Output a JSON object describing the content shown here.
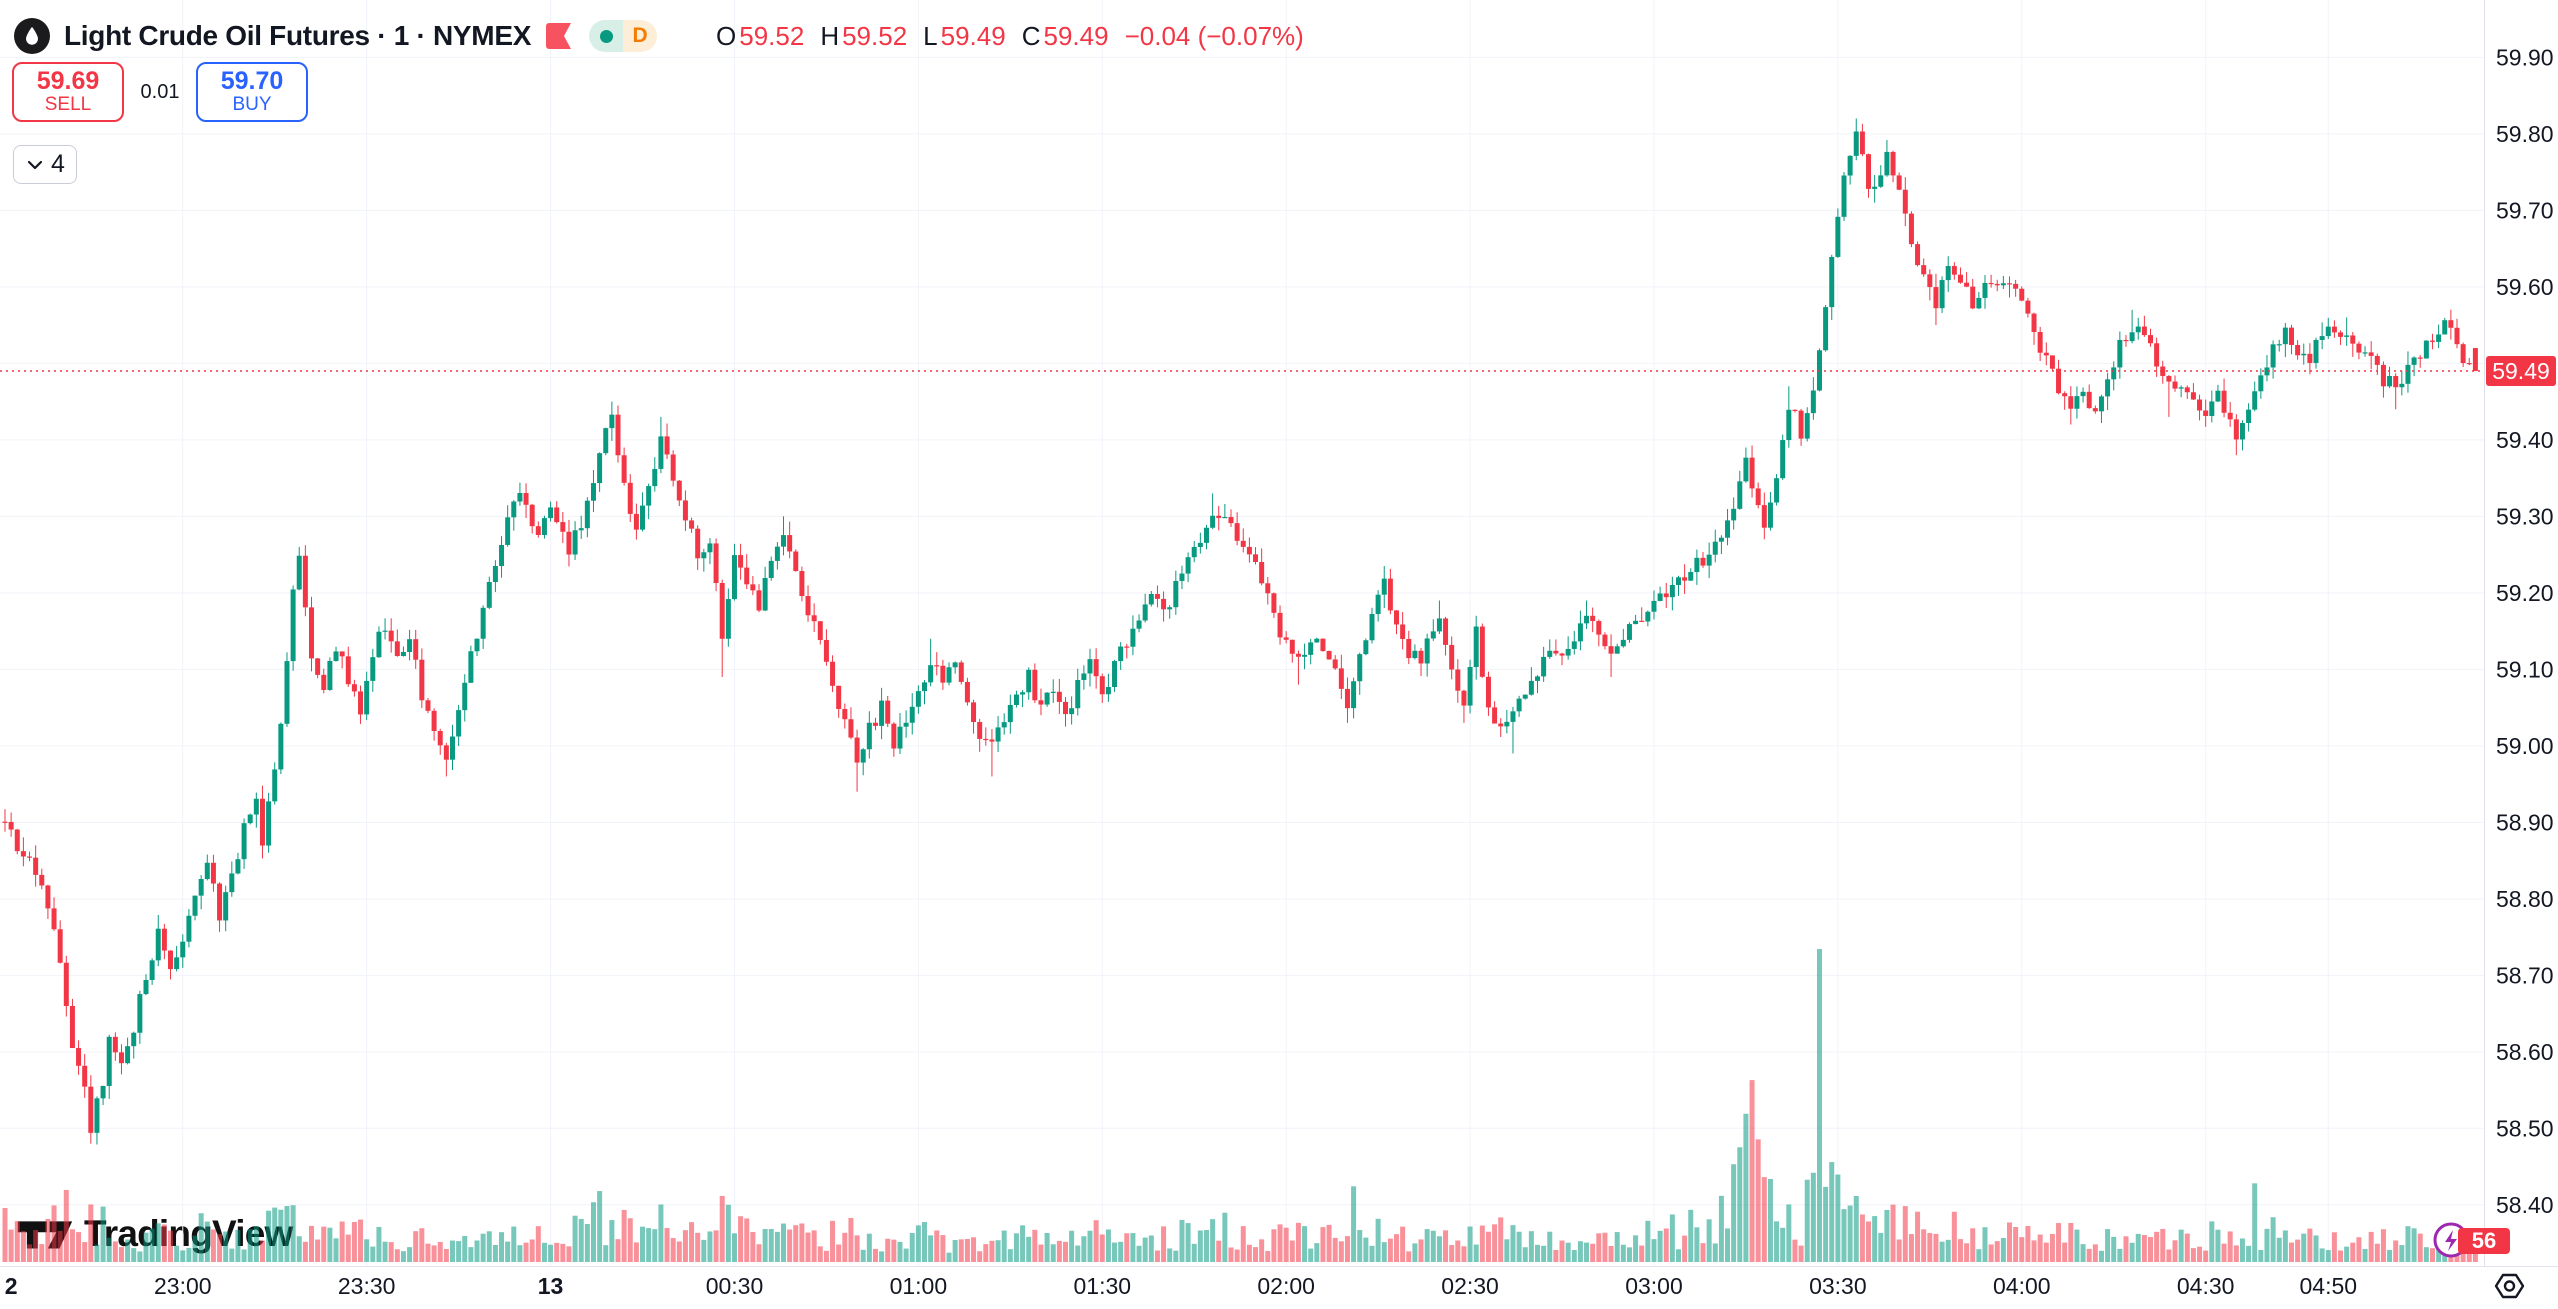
{
  "header": {
    "title": "Light Crude Oil Futures · 1 · NYMEX",
    "logo_icon": "oil-drop",
    "flag_color": "#f7525f",
    "interval_badge": "D",
    "ohlc": {
      "o_label": "O",
      "o": "59.52",
      "h_label": "H",
      "h": "59.52",
      "l_label": "L",
      "l": "59.49",
      "c_label": "C",
      "c": "59.49",
      "change": "−0.04 (−0.07%)"
    }
  },
  "order_panel": {
    "sell_price": "59.69",
    "sell_label": "SELL",
    "spread": "0.01",
    "buy_price": "59.70",
    "buy_label": "BUY"
  },
  "toolbar": {
    "object_tree_count": "4"
  },
  "watermark": {
    "text": "TradingView"
  },
  "last_price": {
    "value": "59.49"
  },
  "volume_badge": {
    "value": "56"
  },
  "colors": {
    "up": "#089981",
    "down": "#f23645",
    "vol_up": "rgba(8,153,129,0.55)",
    "vol_down": "rgba(242,54,69,0.55)",
    "grid": "#f0f3fa",
    "axis_border": "#e0e3eb",
    "axis_text": "#131722",
    "price_line": "#f23645",
    "buy_blue": "#2962ff",
    "alert_purple": "#9c27b0"
  },
  "chart_data": {
    "type": "candlestick",
    "symbol": "Light Crude Oil Futures",
    "interval": "1",
    "exchange": "NYMEX",
    "price_line": 59.49,
    "last_candle": {
      "o": 59.52,
      "h": 59.52,
      "l": 59.49,
      "c": 59.49
    },
    "y_axis": {
      "max": 59.975,
      "min": 58.32,
      "ticks": [
        {
          "p": 59.9
        },
        {
          "p": 59.8
        },
        {
          "p": 59.7
        },
        {
          "p": 59.6
        },
        {
          "p": 59.5,
          "hide_label": true
        },
        {
          "p": 59.4
        },
        {
          "p": 59.3
        },
        {
          "p": 59.2
        },
        {
          "p": 59.1
        },
        {
          "p": 59.0
        },
        {
          "p": 58.9
        },
        {
          "p": 58.8
        },
        {
          "p": 58.7
        },
        {
          "p": 58.6
        },
        {
          "p": 58.5
        },
        {
          "p": 58.4
        }
      ]
    },
    "x_axis": {
      "start_time": "22:31",
      "ticks": [
        {
          "m": 1,
          "label": "2",
          "bold": true,
          "grid": false
        },
        {
          "m": 29,
          "label": "23:00"
        },
        {
          "m": 59,
          "label": "23:30"
        },
        {
          "m": 89,
          "label": "13",
          "bold": true
        },
        {
          "m": 119,
          "label": "00:30"
        },
        {
          "m": 149,
          "label": "01:00"
        },
        {
          "m": 179,
          "label": "01:30"
        },
        {
          "m": 209,
          "label": "02:00"
        },
        {
          "m": 239,
          "label": "02:30"
        },
        {
          "m": 269,
          "label": "03:00"
        },
        {
          "m": 299,
          "label": "03:30"
        },
        {
          "m": 329,
          "label": "04:00"
        },
        {
          "m": 359,
          "label": "04:30"
        },
        {
          "m": 379,
          "label": "04:50"
        }
      ]
    },
    "anchors": [
      [
        0,
        58.9
      ],
      [
        2,
        58.87
      ],
      [
        5,
        58.84
      ],
      [
        7,
        58.78
      ],
      [
        9,
        58.72
      ],
      [
        11,
        58.61
      ],
      [
        13,
        58.55
      ],
      [
        14,
        58.5,
        null,
        58.48
      ],
      [
        16,
        58.56
      ],
      [
        17,
        58.63
      ],
      [
        19,
        58.58
      ],
      [
        21,
        58.63
      ],
      [
        23,
        58.7
      ],
      [
        25,
        58.76
      ],
      [
        27,
        58.71
      ],
      [
        29,
        58.74
      ],
      [
        31,
        58.81
      ],
      [
        33,
        58.84
      ],
      [
        35,
        58.78
      ],
      [
        37,
        58.83
      ],
      [
        39,
        58.89
      ],
      [
        41,
        58.93
      ],
      [
        42,
        58.88
      ],
      [
        44,
        58.97
      ],
      [
        46,
        59.1
      ],
      [
        47,
        59.2
      ],
      [
        48,
        59.24,
        59.26
      ],
      [
        50,
        59.12
      ],
      [
        52,
        59.08
      ],
      [
        54,
        59.13
      ],
      [
        56,
        59.09
      ],
      [
        58,
        59.04
      ],
      [
        60,
        59.12
      ],
      [
        62,
        59.16
      ],
      [
        64,
        59.11
      ],
      [
        66,
        59.14
      ],
      [
        68,
        59.07
      ],
      [
        70,
        59.03
      ],
      [
        72,
        58.99,
        null,
        58.96
      ],
      [
        74,
        59.05
      ],
      [
        76,
        59.12
      ],
      [
        78,
        59.18
      ],
      [
        80,
        59.24
      ],
      [
        82,
        59.3
      ],
      [
        84,
        59.33
      ],
      [
        87,
        59.28
      ],
      [
        89,
        59.31
      ],
      [
        92,
        59.26
      ],
      [
        95,
        59.31
      ],
      [
        97,
        59.38
      ],
      [
        99,
        59.43,
        59.45
      ],
      [
        101,
        59.34
      ],
      [
        103,
        59.28
      ],
      [
        105,
        59.33
      ],
      [
        107,
        59.41,
        59.43
      ],
      [
        109,
        59.35
      ],
      [
        111,
        59.3
      ],
      [
        113,
        59.25
      ],
      [
        115,
        59.27
      ],
      [
        116,
        59.21
      ],
      [
        117,
        59.13,
        null,
        59.09
      ],
      [
        118,
        59.2
      ],
      [
        119,
        59.26
      ],
      [
        121,
        59.22
      ],
      [
        123,
        59.18
      ],
      [
        125,
        59.24
      ],
      [
        127,
        59.27,
        59.3
      ],
      [
        129,
        59.22
      ],
      [
        131,
        59.18
      ],
      [
        133,
        59.13
      ],
      [
        135,
        59.07
      ],
      [
        137,
        59.03
      ],
      [
        139,
        58.98,
        null,
        58.94
      ],
      [
        141,
        59.02
      ],
      [
        143,
        59.05
      ],
      [
        145,
        59.0
      ],
      [
        147,
        59.04
      ],
      [
        149,
        59.07
      ],
      [
        151,
        59.11,
        59.14
      ],
      [
        153,
        59.08
      ],
      [
        155,
        59.11
      ],
      [
        157,
        59.06
      ],
      [
        159,
        59.02
      ],
      [
        161,
        59.0,
        null,
        58.96
      ],
      [
        163,
        59.03
      ],
      [
        165,
        59.06
      ],
      [
        167,
        59.09
      ],
      [
        169,
        59.05
      ],
      [
        171,
        59.08
      ],
      [
        173,
        59.04
      ],
      [
        175,
        59.08
      ],
      [
        177,
        59.11
      ],
      [
        179,
        59.06
      ],
      [
        181,
        59.1
      ],
      [
        183,
        59.14
      ],
      [
        185,
        59.17
      ],
      [
        187,
        59.2
      ],
      [
        189,
        59.17
      ],
      [
        191,
        59.21
      ],
      [
        193,
        59.24
      ],
      [
        195,
        59.27
      ],
      [
        197,
        59.31,
        59.33
      ],
      [
        199,
        59.3
      ],
      [
        201,
        59.27
      ],
      [
        203,
        59.25
      ],
      [
        205,
        59.22
      ],
      [
        207,
        59.17
      ],
      [
        209,
        59.13
      ],
      [
        211,
        59.11,
        null,
        59.08
      ],
      [
        213,
        59.14
      ],
      [
        215,
        59.12
      ],
      [
        217,
        59.1
      ],
      [
        219,
        59.05,
        null,
        59.03
      ],
      [
        221,
        59.12
      ],
      [
        223,
        59.17
      ],
      [
        225,
        59.21,
        59.23
      ],
      [
        227,
        59.16
      ],
      [
        229,
        59.12
      ],
      [
        231,
        59.11
      ],
      [
        233,
        59.15
      ],
      [
        234,
        59.17,
        59.19
      ],
      [
        236,
        59.1
      ],
      [
        238,
        59.06,
        null,
        59.03
      ],
      [
        240,
        59.15,
        59.17
      ],
      [
        242,
        59.05
      ],
      [
        244,
        59.03
      ],
      [
        246,
        59.04,
        null,
        58.99
      ],
      [
        248,
        59.07
      ],
      [
        250,
        59.1
      ],
      [
        252,
        59.12
      ],
      [
        254,
        59.11
      ],
      [
        256,
        59.13
      ],
      [
        258,
        59.17,
        59.19
      ],
      [
        260,
        59.15
      ],
      [
        262,
        59.12,
        null,
        59.09
      ],
      [
        264,
        59.14
      ],
      [
        266,
        59.16
      ],
      [
        268,
        59.17
      ],
      [
        270,
        59.19
      ],
      [
        272,
        59.2
      ],
      [
        274,
        59.22
      ],
      [
        276,
        59.24
      ],
      [
        278,
        59.25
      ],
      [
        280,
        59.27
      ],
      [
        282,
        59.3
      ],
      [
        284,
        59.37,
        59.39
      ],
      [
        286,
        59.31
      ],
      [
        287,
        59.29,
        null,
        59.27
      ],
      [
        289,
        59.36
      ],
      [
        291,
        59.45,
        59.47
      ],
      [
        293,
        59.41
      ],
      [
        295,
        59.47
      ],
      [
        296,
        59.52
      ],
      [
        297,
        59.58
      ],
      [
        298,
        59.64
      ],
      [
        299,
        59.7
      ],
      [
        300,
        59.75
      ],
      [
        302,
        59.8,
        59.82
      ],
      [
        304,
        59.73
      ],
      [
        306,
        59.75
      ],
      [
        307,
        59.77,
        59.79
      ],
      [
        309,
        59.72
      ],
      [
        311,
        59.66
      ],
      [
        313,
        59.61
      ],
      [
        315,
        59.58,
        null,
        59.55
      ],
      [
        317,
        59.62,
        59.64
      ],
      [
        319,
        59.6
      ],
      [
        321,
        59.58
      ],
      [
        323,
        59.61
      ],
      [
        325,
        59.6
      ],
      [
        327,
        59.61
      ],
      [
        329,
        59.58
      ],
      [
        331,
        59.54
      ],
      [
        333,
        59.5
      ],
      [
        335,
        59.47
      ],
      [
        337,
        59.45,
        null,
        59.42
      ],
      [
        339,
        59.46
      ],
      [
        341,
        59.44
      ],
      [
        343,
        59.47
      ],
      [
        345,
        59.52
      ],
      [
        347,
        59.55,
        59.57
      ],
      [
        349,
        59.54
      ],
      [
        351,
        59.5
      ],
      [
        353,
        59.47,
        null,
        59.43
      ],
      [
        355,
        59.46
      ],
      [
        357,
        59.45
      ],
      [
        359,
        59.44
      ],
      [
        361,
        59.46
      ],
      [
        363,
        59.42
      ],
      [
        364,
        59.41,
        null,
        59.38
      ],
      [
        366,
        59.45
      ],
      [
        368,
        59.49
      ],
      [
        370,
        59.52
      ],
      [
        372,
        59.54
      ],
      [
        374,
        59.52
      ],
      [
        376,
        59.51
      ],
      [
        378,
        59.53
      ],
      [
        380,
        59.55
      ],
      [
        382,
        59.54,
        59.56
      ],
      [
        384,
        59.52
      ],
      [
        386,
        59.5
      ],
      [
        388,
        59.48
      ],
      [
        390,
        59.47,
        null,
        59.44
      ],
      [
        392,
        59.49
      ],
      [
        394,
        59.51
      ],
      [
        396,
        59.53
      ],
      [
        398,
        59.55
      ],
      [
        400,
        59.53
      ],
      [
        401,
        59.51
      ],
      [
        403,
        59.49
      ]
    ],
    "volume_anchors": [
      [
        0,
        12
      ],
      [
        3,
        9
      ],
      [
        6,
        10
      ],
      [
        9,
        16
      ],
      [
        12,
        14
      ],
      [
        14,
        15
      ],
      [
        17,
        10
      ],
      [
        21,
        8
      ],
      [
        25,
        9
      ],
      [
        29,
        8
      ],
      [
        34,
        12
      ],
      [
        39,
        9
      ],
      [
        44,
        11
      ],
      [
        47,
        14
      ],
      [
        51,
        10
      ],
      [
        55,
        9
      ],
      [
        59,
        10
      ],
      [
        63,
        8
      ],
      [
        67,
        7
      ],
      [
        71,
        8
      ],
      [
        75,
        7
      ],
      [
        79,
        8
      ],
      [
        84,
        9
      ],
      [
        89,
        10
      ],
      [
        94,
        11
      ],
      [
        97,
        16
      ],
      [
        98,
        12
      ],
      [
        99,
        22
      ],
      [
        100,
        11
      ],
      [
        104,
        10
      ],
      [
        107,
        15
      ],
      [
        110,
        12
      ],
      [
        113,
        10
      ],
      [
        117,
        14
      ],
      [
        121,
        9
      ],
      [
        125,
        8
      ],
      [
        129,
        9
      ],
      [
        134,
        8
      ],
      [
        139,
        10
      ],
      [
        144,
        8
      ],
      [
        149,
        9
      ],
      [
        154,
        7
      ],
      [
        159,
        8
      ],
      [
        164,
        9
      ],
      [
        169,
        7
      ],
      [
        174,
        8
      ],
      [
        179,
        9
      ],
      [
        184,
        7
      ],
      [
        189,
        8
      ],
      [
        194,
        9
      ],
      [
        199,
        10
      ],
      [
        204,
        8
      ],
      [
        209,
        9
      ],
      [
        214,
        8
      ],
      [
        218,
        10
      ],
      [
        219,
        8
      ],
      [
        220,
        20
      ],
      [
        221,
        8
      ],
      [
        224,
        9
      ],
      [
        229,
        8
      ],
      [
        234,
        7
      ],
      [
        239,
        8
      ],
      [
        244,
        9
      ],
      [
        249,
        8
      ],
      [
        254,
        7
      ],
      [
        259,
        8
      ],
      [
        264,
        7
      ],
      [
        269,
        9
      ],
      [
        274,
        10
      ],
      [
        277,
        12
      ],
      [
        281,
        14
      ],
      [
        283,
        35
      ],
      [
        285,
        55
      ],
      [
        287,
        30
      ],
      [
        289,
        16
      ],
      [
        291,
        14
      ],
      [
        293,
        13
      ],
      [
        295,
        30
      ],
      [
        296,
        100
      ],
      [
        297,
        25
      ],
      [
        298,
        32
      ],
      [
        300,
        20
      ],
      [
        302,
        16
      ],
      [
        304,
        14
      ],
      [
        306,
        12
      ],
      [
        308,
        15
      ],
      [
        311,
        12
      ],
      [
        314,
        10
      ],
      [
        317,
        11
      ],
      [
        320,
        9
      ],
      [
        324,
        8
      ],
      [
        328,
        9
      ],
      [
        331,
        8
      ],
      [
        335,
        9
      ],
      [
        339,
        8
      ],
      [
        343,
        7
      ],
      [
        347,
        8
      ],
      [
        351,
        7
      ],
      [
        355,
        9
      ],
      [
        359,
        8
      ],
      [
        362,
        12
      ],
      [
        366,
        10
      ],
      [
        367,
        25
      ],
      [
        368,
        9
      ],
      [
        369,
        10
      ],
      [
        373,
        8
      ],
      [
        377,
        7
      ],
      [
        381,
        6
      ],
      [
        386,
        7
      ],
      [
        391,
        9
      ],
      [
        396,
        6
      ],
      [
        400,
        5
      ],
      [
        403,
        5
      ]
    ]
  }
}
